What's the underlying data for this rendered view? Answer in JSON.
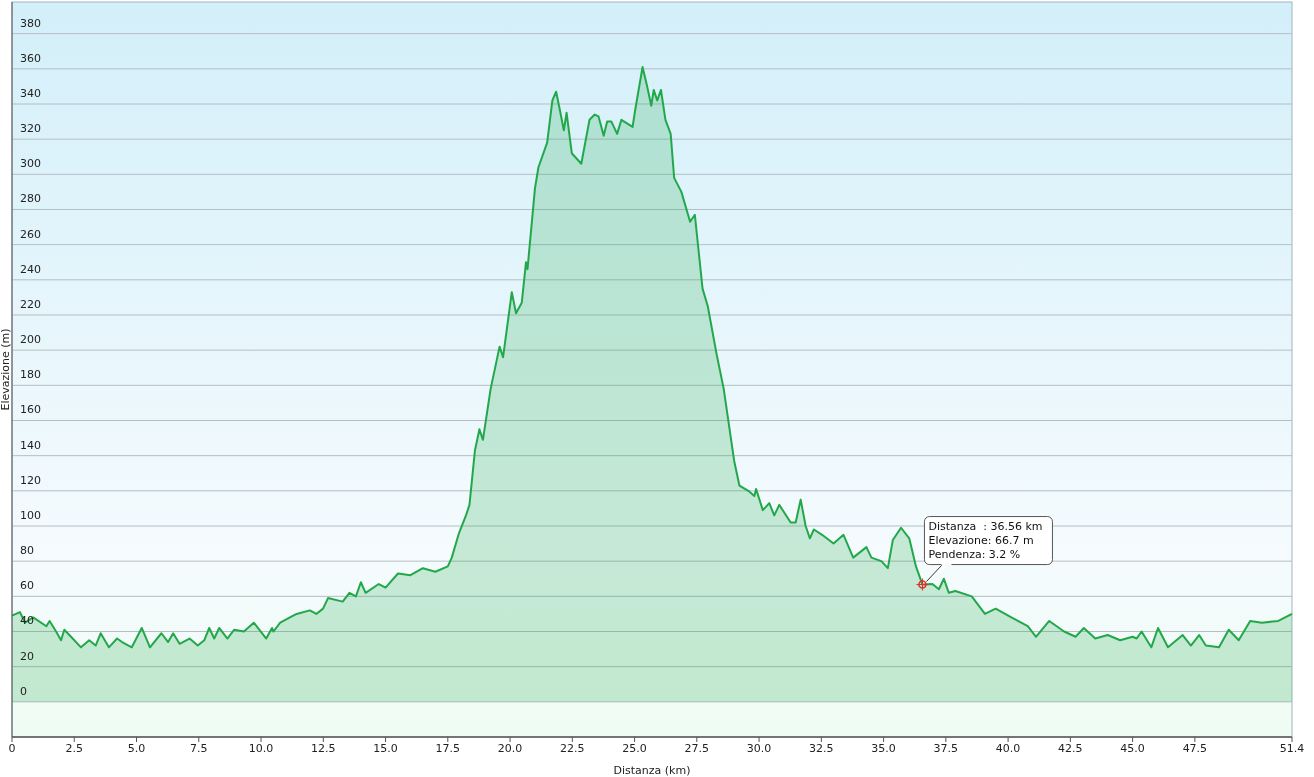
{
  "chart_data": {
    "type": "area",
    "xlabel": "Distanza  (km)",
    "ylabel": "Elevazione (m)",
    "xlim": [
      0,
      51.4
    ],
    "ylim": [
      -20,
      398
    ],
    "xticks": [
      0,
      {
        "value": 2.5,
        "label": "2.5"
      },
      {
        "value": 5,
        "label": "5.0"
      },
      {
        "value": 7.5,
        "label": "7.5"
      },
      {
        "value": 10,
        "label": "10.0"
      },
      {
        "value": 12.5,
        "label": "12.5"
      },
      {
        "value": 15,
        "label": "15.0"
      },
      {
        "value": 17.5,
        "label": "17.5"
      },
      {
        "value": 20,
        "label": "20.0"
      },
      {
        "value": 22.5,
        "label": "22.5"
      },
      {
        "value": 25,
        "label": "25.0"
      },
      {
        "value": 27.5,
        "label": "27.5"
      },
      {
        "value": 30,
        "label": "30.0"
      },
      {
        "value": 32.5,
        "label": "32.5"
      },
      {
        "value": 35,
        "label": "35.0"
      },
      {
        "value": 37.5,
        "label": "37.5"
      },
      {
        "value": 40,
        "label": "40.0"
      },
      {
        "value": 42.5,
        "label": "42.5"
      },
      {
        "value": 45,
        "label": "45.0"
      },
      {
        "value": 47.5,
        "label": "47.5"
      },
      51.4
    ],
    "yticks": [
      0,
      20,
      40,
      60,
      80,
      100,
      120,
      140,
      160,
      180,
      200,
      220,
      240,
      260,
      280,
      300,
      320,
      340,
      360,
      380
    ],
    "grid": "y",
    "annotations": [
      {
        "text": "Distanza  : 36.56 km\nElevazione: 66.7 m\nPendenza: 3.2 %",
        "x": 36.56,
        "y": 66.7
      }
    ],
    "series": [
      {
        "color": "#22a84a",
        "x": [
          0,
          0.32,
          0.52,
          0.85,
          1.38,
          1.51,
          1.77,
          1.97,
          2.1,
          2.37,
          2.77,
          3.1,
          3.36,
          3.56,
          3.89,
          4.22,
          4.42,
          4.81,
          5.21,
          5.54,
          6.0,
          6.27,
          6.47,
          6.73,
          7.13,
          7.46,
          7.72,
          7.92,
          8.12,
          8.32,
          8.65,
          8.92,
          9.31,
          9.71,
          10.21,
          10.44,
          10.5,
          10.77,
          11.16,
          11.43,
          11.96,
          12.22,
          12.49,
          12.69,
          13.28,
          13.55,
          13.81,
          14.01,
          14.2,
          14.73,
          15.0,
          15.5,
          16.0,
          16.5,
          17.0,
          17.5,
          17.66,
          17.95,
          18.23,
          18.37,
          18.59,
          18.77,
          18.91,
          19.22,
          19.58,
          19.72,
          20.07,
          20.24,
          20.47,
          20.64,
          20.7,
          21.0,
          21.14,
          21.49,
          21.7,
          21.85,
          21.98,
          22.16,
          22.27,
          22.48,
          22.86,
          23.19,
          23.4,
          23.55,
          23.76,
          23.9,
          24.07,
          24.3,
          24.47,
          24.92,
          25.03,
          25.32,
          25.49,
          25.67,
          25.77,
          25.91,
          26.06,
          26.24,
          26.45,
          26.59,
          26.88,
          27.23,
          27.42,
          27.73,
          27.94,
          28.29,
          28.58,
          29.0,
          29.21,
          29.57,
          29.81,
          29.88,
          30.15,
          30.41,
          30.61,
          30.81,
          31.27,
          31.47,
          31.67,
          31.87,
          32.04,
          32.2,
          32.53,
          32.99,
          33.39,
          33.78,
          34.31,
          34.51,
          34.91,
          35.17,
          35.37,
          35.7,
          36.03,
          36.3,
          36.56,
          36.96,
          37.22,
          37.42,
          37.62,
          37.88,
          38.54,
          39.07,
          39.5,
          40.13,
          40.79,
          41.12,
          41.65,
          42.25,
          42.71,
          43.04,
          43.5,
          44.0,
          44.5,
          45.0,
          45.16,
          45.36,
          45.75,
          46.02,
          46.42,
          47.01,
          47.34,
          47.67,
          47.94,
          48.47,
          48.86,
          49.26,
          49.72,
          50.19,
          50.85,
          51.4
        ],
        "values": [
          49,
          51,
          45,
          48,
          43,
          46,
          40,
          35,
          41,
          37,
          31,
          35,
          32,
          39,
          31,
          36,
          34,
          31,
          42,
          31,
          39,
          34,
          39,
          33,
          36,
          32,
          35,
          42,
          36,
          42,
          36,
          41,
          40,
          45,
          36,
          42,
          40,
          45,
          48,
          50,
          52,
          50,
          53,
          59,
          57,
          62,
          60,
          68,
          62,
          67,
          65,
          73,
          72,
          76,
          74,
          77,
          82,
          96,
          106,
          112,
          143,
          155,
          149,
          178,
          202,
          196,
          233,
          221,
          227,
          250,
          246,
          292,
          304,
          318,
          342,
          347,
          338,
          325,
          335,
          312,
          306,
          331,
          334,
          333,
          322,
          330,
          330,
          323,
          331,
          327,
          337,
          361,
          351,
          339,
          348,
          342,
          348,
          331,
          323,
          298,
          290,
          273,
          277,
          235,
          225,
          198,
          178,
          137,
          123,
          120,
          117,
          121,
          109,
          113,
          106,
          112,
          102,
          102,
          115,
          100,
          93,
          98,
          95,
          90,
          95,
          82,
          88,
          82,
          80,
          76,
          92,
          99,
          93,
          77,
          66.7,
          67,
          64,
          70,
          62,
          63,
          60,
          50,
          53,
          48,
          43,
          37,
          46,
          40,
          37,
          42,
          36,
          38,
          35,
          37,
          36,
          40,
          31,
          42,
          31,
          38,
          32,
          38,
          32,
          31,
          41,
          35,
          46,
          45,
          46,
          50
        ]
      }
    ]
  }
}
